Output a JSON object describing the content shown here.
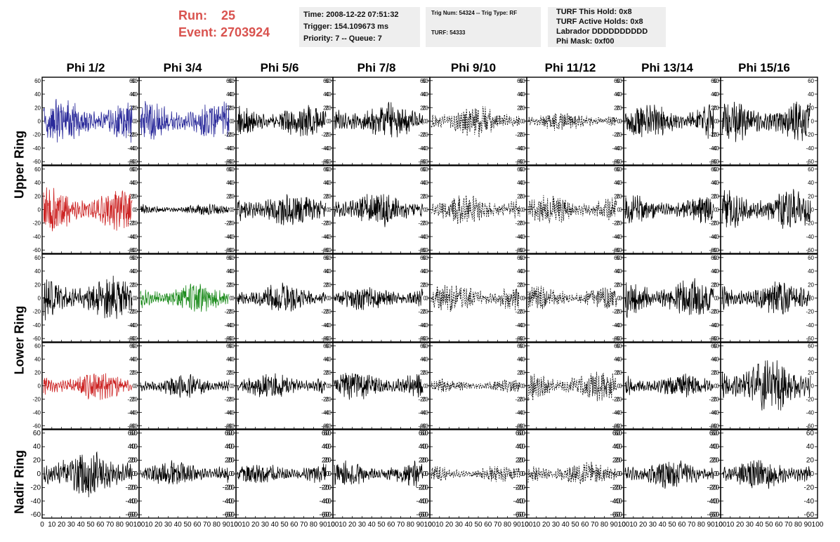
{
  "header": {
    "run_label": "Run:",
    "run_value": "25",
    "event_label": "Event:",
    "event_value": "2703924",
    "time_line": "Time: 2008-12-22 07:51:32",
    "trigger_line": "Trigger: 154.109673 ms",
    "priority_line": "Priority: 7 -- Queue: 7",
    "trig_line": "Trig Num: 54324 -- Trig Type: RF",
    "turf_line": "TURF: 54333",
    "turf_hold_line": "TURF This Hold: 0x8",
    "turf_active_line": "TURF Active Holds: 0x8",
    "labrador_line": "Labrador DDDDDDDDDD",
    "phi_mask_line": "Phi Mask: 0xf00"
  },
  "columns": [
    "Phi 1/2",
    "Phi 3/4",
    "Phi 5/6",
    "Phi 7/8",
    "Phi 9/10",
    "Phi 11/12",
    "Phi 13/14",
    "Phi 15/16"
  ],
  "ring_labels": [
    "Upper Ring",
    "Lower Ring",
    "Nadir Ring"
  ],
  "colors": {
    "blue": "#2a2a9a",
    "red": "#cc2222",
    "green": "#1e8c1e",
    "black": "#000000"
  },
  "chart_data": {
    "type": "line",
    "xlim": [
      0,
      100
    ],
    "ylim": [
      -65,
      65
    ],
    "y_ticks": [
      "-60",
      "-40",
      "-20",
      "0",
      "20",
      "40",
      "60"
    ],
    "x_ticks": [
      "0",
      "10",
      "20",
      "30",
      "40",
      "50",
      "60",
      "70",
      "80",
      "90",
      "100"
    ],
    "rows": [
      {
        "ring": "Upper Ring",
        "traces": [
          {
            "color": "blue",
            "style": "solid",
            "amp": 24
          },
          {
            "color": "blue",
            "style": "solid",
            "amp": 22
          },
          {
            "color": "black",
            "style": "solid",
            "amp": 18
          },
          {
            "color": "black",
            "style": "solid",
            "amp": 20
          },
          {
            "color": "black",
            "style": "dashed",
            "amp": 17
          },
          {
            "color": "black",
            "style": "dashed",
            "amp": 11
          },
          {
            "color": "black",
            "style": "solid",
            "amp": 20
          },
          {
            "color": "black",
            "style": "solid",
            "amp": 23
          }
        ]
      },
      {
        "ring": "Upper Ring",
        "traces": [
          {
            "color": "red",
            "style": "solid",
            "amp": 24
          },
          {
            "color": "black",
            "style": "solid",
            "amp": 6
          },
          {
            "color": "black",
            "style": "solid",
            "amp": 20
          },
          {
            "color": "black",
            "style": "solid",
            "amp": 20
          },
          {
            "color": "black",
            "style": "dashed",
            "amp": 16
          },
          {
            "color": "black",
            "style": "dashed",
            "amp": 16
          },
          {
            "color": "black",
            "style": "solid",
            "amp": 16
          },
          {
            "color": "black",
            "style": "solid",
            "amp": 24
          }
        ]
      },
      {
        "ring": "Lower Ring",
        "traces": [
          {
            "color": "black",
            "style": "solid",
            "amp": 24
          },
          {
            "color": "green",
            "style": "solid",
            "amp": 16
          },
          {
            "color": "black",
            "style": "solid",
            "amp": 16
          },
          {
            "color": "black",
            "style": "solid",
            "amp": 14
          },
          {
            "color": "black",
            "style": "dashed",
            "amp": 16
          },
          {
            "color": "black",
            "style": "dashed",
            "amp": 13
          },
          {
            "color": "black",
            "style": "solid",
            "amp": 22
          },
          {
            "color": "black",
            "style": "solid",
            "amp": 18
          }
        ]
      },
      {
        "ring": "Lower Ring",
        "traces": [
          {
            "color": "red",
            "style": "solid",
            "amp": 16
          },
          {
            "color": "black",
            "style": "solid",
            "amp": 13
          },
          {
            "color": "black",
            "style": "solid",
            "amp": 14
          },
          {
            "color": "black",
            "style": "solid",
            "amp": 16
          },
          {
            "color": "black",
            "style": "dashed",
            "amp": 8
          },
          {
            "color": "black",
            "style": "dashed",
            "amp": 17
          },
          {
            "color": "black",
            "style": "solid",
            "amp": 14
          },
          {
            "color": "black",
            "style": "solid",
            "amp": 30
          }
        ]
      },
      {
        "ring": "Nadir Ring",
        "traces": [
          {
            "color": "black",
            "style": "solid",
            "amp": 26
          },
          {
            "color": "black",
            "style": "solid",
            "amp": 14
          },
          {
            "color": "black",
            "style": "solid",
            "amp": 12
          },
          {
            "color": "black",
            "style": "solid",
            "amp": 14
          },
          {
            "color": "black",
            "style": "dashed",
            "amp": 9
          },
          {
            "color": "black",
            "style": "dashed",
            "amp": 13
          },
          {
            "color": "black",
            "style": "solid",
            "amp": 16
          },
          {
            "color": "black",
            "style": "solid",
            "amp": 18
          }
        ]
      }
    ]
  }
}
